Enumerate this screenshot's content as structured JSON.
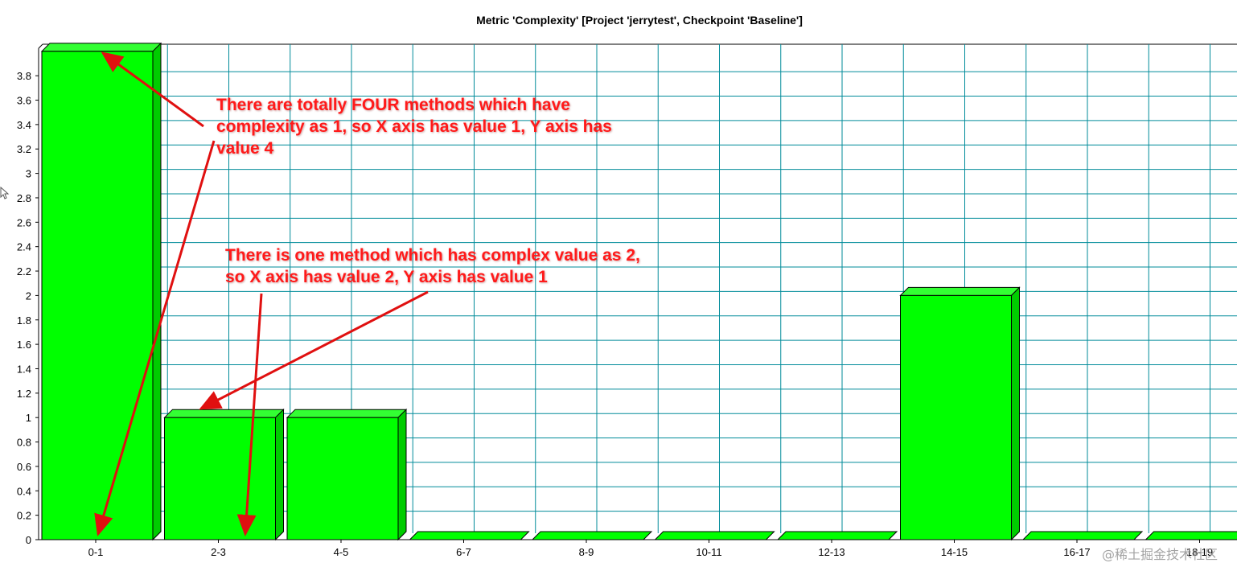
{
  "chart_data": {
    "type": "bar",
    "title": "Metric 'Complexity' [Project 'jerrytest', Checkpoint 'Baseline']",
    "xlabel": "",
    "ylabel": "",
    "categories": [
      "0-1",
      "2-3",
      "4-5",
      "6-7",
      "8-9",
      "10-11",
      "12-13",
      "14-15",
      "16-17",
      "18-19"
    ],
    "values": [
      4,
      1,
      1,
      0,
      0,
      0,
      0,
      2,
      0,
      0
    ],
    "ylim": [
      0,
      4
    ],
    "yticks": [
      "0",
      "0.2",
      "0.4",
      "0.6",
      "0.8",
      "1",
      "1.2",
      "1.4",
      "1.6",
      "1.8",
      "2",
      "2.2",
      "2.4",
      "2.6",
      "2.8",
      "3",
      "3.2",
      "3.4",
      "3.6",
      "3.8"
    ],
    "grid": true,
    "bar_style": "3d",
    "colors": {
      "bar": "#00ff00",
      "bar_top": "#33ff33",
      "bar_side": "#00cc00",
      "grid": "#008b9a",
      "annotation": "#ff1a1a"
    },
    "annotations": [
      {
        "lines": [
          "There are totally FOUR methods which have",
          "complexity as 1, so X axis has value 1, Y axis has",
          "value 4"
        ]
      },
      {
        "lines": [
          "There is one method which has complex value as 2,",
          "so X axis has value 2, Y axis has value 1"
        ]
      }
    ]
  },
  "watermark": "@稀土掘金技术社区",
  "icons": [
    "mouse-cursor-icon"
  ]
}
